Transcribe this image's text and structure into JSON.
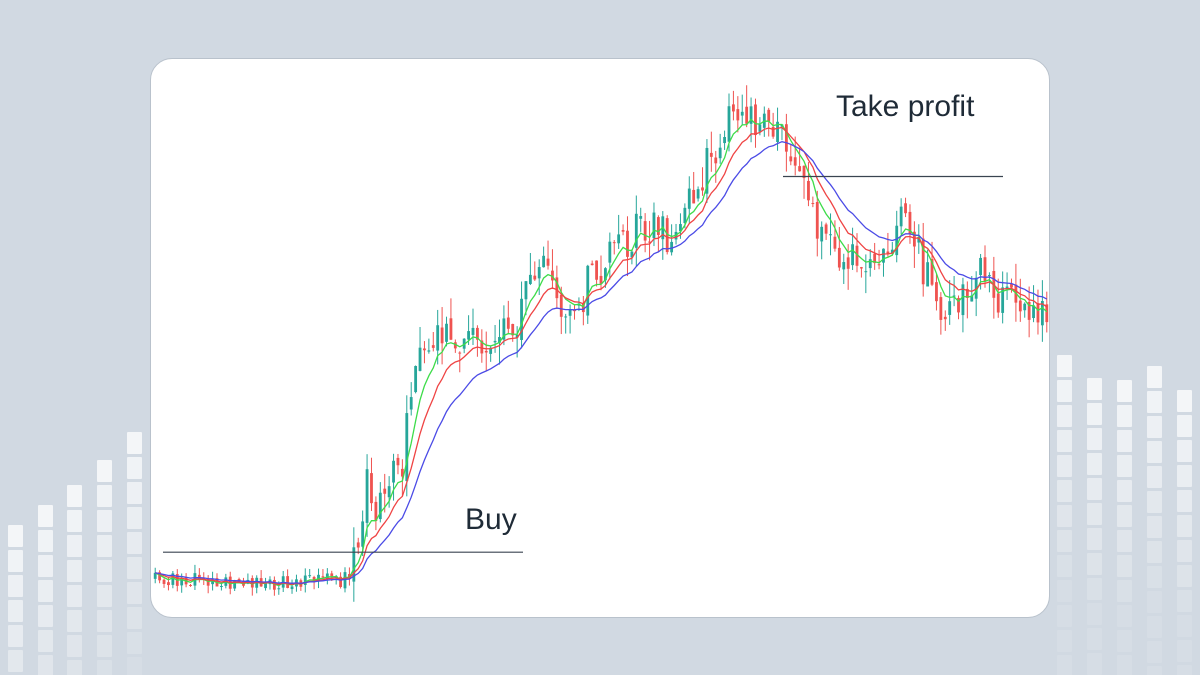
{
  "chart_data": {
    "type": "candlestick",
    "title": "",
    "xlabel": "",
    "ylabel": "",
    "grid": false,
    "annotations": [
      {
        "name": "buy",
        "text": "Buy",
        "price": 53.5
      },
      {
        "name": "take-profit",
        "text": "Take profit",
        "price": 102.5
      }
    ],
    "colors": {
      "bull": "#26a69a",
      "bear": "#ef5350",
      "ma_fast": "#3ddc4a",
      "ma_mid": "#ef4444",
      "ma_slow": "#4b4be6",
      "annotation_line": "#3a4450"
    },
    "moving_average_lines": [
      "green",
      "red",
      "blue"
    ],
    "price_path": [
      [
        0,
        50
      ],
      [
        27,
        49.5
      ],
      [
        44,
        50
      ],
      [
        48,
        57
      ],
      [
        56,
        66
      ],
      [
        60,
        80
      ],
      [
        66,
        82
      ],
      [
        75,
        82
      ],
      [
        82,
        84
      ],
      [
        88,
        92
      ],
      [
        92,
        83
      ],
      [
        100,
        90
      ],
      [
        110,
        96
      ],
      [
        118,
        94
      ],
      [
        122,
        100
      ],
      [
        130,
        110
      ],
      [
        140,
        110
      ],
      [
        146,
        103
      ],
      [
        150,
        95
      ],
      [
        160,
        91
      ],
      [
        170,
        97
      ],
      [
        178,
        84
      ],
      [
        186,
        90
      ],
      [
        195,
        85
      ],
      [
        202,
        86
      ]
    ],
    "candle_count": 203,
    "seed": 20240611
  }
}
